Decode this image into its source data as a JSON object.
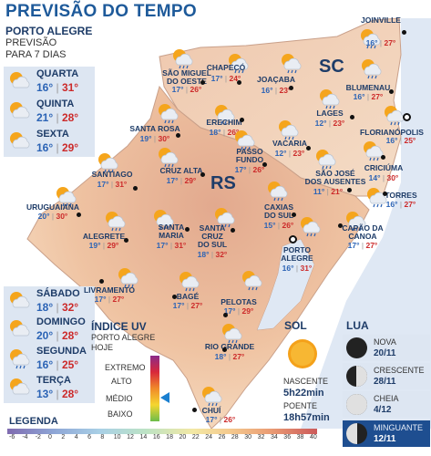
{
  "title": "PREVISÃO DO TEMPO",
  "forecast": {
    "city": "PORTO ALEGRE",
    "subtitle_1": "PREVISÃO",
    "subtitle_2": "PARA 7 DIAS",
    "days": [
      {
        "name": "QUARTA",
        "min": "16°",
        "max": "31°",
        "icon": "sun-cloud-icon"
      },
      {
        "name": "QUINTA",
        "min": "21°",
        "max": "28°",
        "icon": "sun-cloud-icon"
      },
      {
        "name": "SEXTA",
        "min": "16°",
        "max": "29°",
        "icon": "sun-cloud-icon"
      },
      {
        "name": "SÁBADO",
        "min": "18°",
        "max": "32°",
        "icon": "sun-cloud-icon"
      },
      {
        "name": "DOMINGO",
        "min": "20°",
        "max": "28°",
        "icon": "sun-cloud-icon"
      },
      {
        "name": "SEGUNDA",
        "min": "16°",
        "max": "25°",
        "icon": "sun-cloud-rain-icon"
      },
      {
        "name": "TERÇA",
        "min": "13°",
        "max": "28°",
        "icon": "sun-cloud-icon"
      }
    ]
  },
  "states": {
    "rs": "RS",
    "sc": "SC"
  },
  "cities": [
    {
      "name": "JOINVILLE",
      "min": "16°",
      "max": "27°"
    },
    {
      "name": "CHAPECÓ",
      "min": "17°",
      "max": "24°"
    },
    {
      "name": "SÃO MIGUEL\nDO OESTE",
      "min": "17°",
      "max": "26°"
    },
    {
      "name": "JOAÇABA",
      "min": "16°",
      "max": "23°"
    },
    {
      "name": "BLUMENAU",
      "min": "16°",
      "max": "27°"
    },
    {
      "name": "LAGES",
      "min": "12°",
      "max": "23°"
    },
    {
      "name": "FLORIANÓPOLIS",
      "min": "16°",
      "max": "25°"
    },
    {
      "name": "SANTA ROSA",
      "min": "19°",
      "max": "30°"
    },
    {
      "name": "ERECHIM",
      "min": "18°",
      "max": "26°"
    },
    {
      "name": "VACARIA",
      "min": "12°",
      "max": "23°"
    },
    {
      "name": "PASSO\nFUNDO",
      "min": "17°",
      "max": "26°"
    },
    {
      "name": "CRUZ ALTA",
      "min": "17°",
      "max": "29°"
    },
    {
      "name": "SÃO JOSÉ\nDOS AUSENTES",
      "min": "11°",
      "max": "21°"
    },
    {
      "name": "CRICIÚMA",
      "min": "14°",
      "max": "30°"
    },
    {
      "name": "SANTIAGO",
      "min": "17°",
      "max": "31°"
    },
    {
      "name": "TORRES",
      "min": "16°",
      "max": "27°"
    },
    {
      "name": "URUGUAIANA",
      "min": "20°",
      "max": "30°"
    },
    {
      "name": "CAXIAS\nDO SUL",
      "min": "15°",
      "max": "26°"
    },
    {
      "name": "CAPÃO DA\nCANOA",
      "min": "17°",
      "max": "27°"
    },
    {
      "name": "ALEGRETE",
      "min": "19°",
      "max": "29°"
    },
    {
      "name": "SANTA\nMARIA",
      "min": "17°",
      "max": "31°"
    },
    {
      "name": "SANTA\nCRUZ\nDO SUL",
      "min": "18°",
      "max": "32°"
    },
    {
      "name": "PORTO\nALEGRE",
      "min": "16°",
      "max": "31°"
    },
    {
      "name": "LIVRAMENTO",
      "min": "17°",
      "max": "27°"
    },
    {
      "name": "BAGÉ",
      "min": "17°",
      "max": "27°"
    },
    {
      "name": "PELOTAS",
      "min": "17°",
      "max": "29°"
    },
    {
      "name": "RIO GRANDE",
      "min": "18°",
      "max": "27°"
    },
    {
      "name": "CHUÍ",
      "min": "17°",
      "max": "26°"
    }
  ],
  "uv": {
    "title": "ÍNDICE UV",
    "subtitle_1": "PORTO ALEGRE",
    "subtitle_2": "HOJE",
    "levels": [
      "EXTREMO",
      "ALTO",
      "MÉDIO",
      "BAIXO"
    ],
    "current": "MÉDIO",
    "marker_color": "#1a7fd0"
  },
  "sun": {
    "title": "SOL",
    "sunrise_label": "NASCENTE",
    "sunrise": "5h22min",
    "sunset_label": "POENTE",
    "sunset": "18h57min"
  },
  "moon": {
    "title": "LUA",
    "phases": [
      {
        "name": "NOVA",
        "date": "20/11",
        "lit": 0.0
      },
      {
        "name": "CRESCENTE",
        "date": "28/11",
        "lit": 0.5
      },
      {
        "name": "CHEIA",
        "date": "4/12",
        "lit": 1.0
      },
      {
        "name": "MINGUANTE",
        "date": "12/11",
        "lit": 0.5,
        "highlighted": true
      }
    ]
  },
  "legend": {
    "title": "LEGENDA",
    "ticks": [
      "-6",
      "-4",
      "-2",
      "0",
      "2",
      "4",
      "6",
      "8",
      "10",
      "12",
      "14",
      "16",
      "18",
      "20",
      "22",
      "24",
      "26",
      "28",
      "30",
      "32",
      "34",
      "36",
      "38",
      "40"
    ]
  },
  "colors": {
    "title_blue": "#1e5a9a",
    "min_temp": "#2b63b5",
    "max_temp": "#cc2a2a",
    "panel": "#dde6f2",
    "map_warm": "#f0c6a6",
    "sea": "#dfe8f4"
  }
}
